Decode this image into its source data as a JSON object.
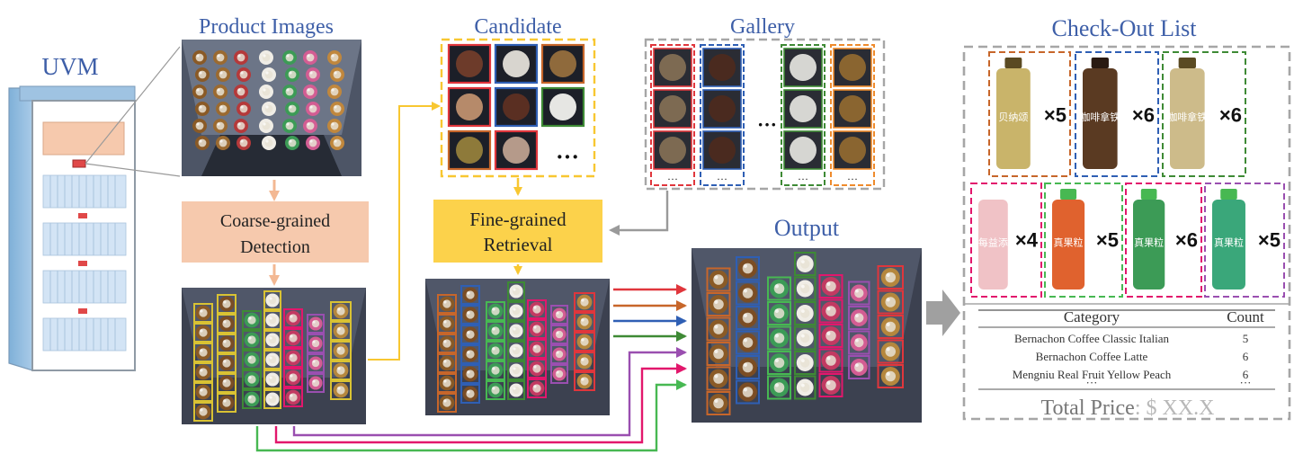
{
  "uvm": {
    "label": "UVM"
  },
  "product_images": {
    "label": "Product Images"
  },
  "coarse_detection": {
    "line1": "Coarse-grained",
    "line2": "Detection"
  },
  "candidate": {
    "label": "Candidate",
    "ellipsis": "···"
  },
  "gallery": {
    "label": "Gallery",
    "ellipsis": "···",
    "column_ellipsis": "···"
  },
  "fine_retrieval": {
    "line1": "Fine-grained",
    "line2": "Retrieval"
  },
  "output": {
    "label": "Output"
  },
  "checkout": {
    "label": "Check-Out List",
    "products": [
      {
        "count": "×5",
        "caption": "贝纳颂"
      },
      {
        "count": "×6",
        "caption": "咖啡拿铁"
      },
      {
        "count": "×6",
        "caption": "咖啡拿铁"
      },
      {
        "count": "×4",
        "caption": "每益添"
      },
      {
        "count": "×5",
        "caption": "真果粒"
      },
      {
        "count": "×6",
        "caption": "真果粒"
      },
      {
        "count": "×5",
        "caption": "真果粒"
      }
    ],
    "table": {
      "header_category": "Category",
      "header_count": "Count",
      "rows": [
        {
          "category": "Bernachon Coffee Classic Italian",
          "count": "5"
        },
        {
          "category": "Bernachon Coffee Latte",
          "count": "6"
        },
        {
          "category": "Mengniu Real Fruit Yellow Peach",
          "count": "6"
        }
      ],
      "ellipsis_category": "···",
      "ellipsis_count": "···"
    },
    "total_label": "Total Price",
    "total_value": ": $ XX.X"
  },
  "colors": {
    "title_blue": "#3e5fa8",
    "coarse_box": "#f6c9ad",
    "fine_box": "#fcd24b",
    "yellow_arrow": "#f8c731",
    "gray_arrow": "#9a9a9a",
    "red": "#e0363c",
    "brown": "#c7662a",
    "blue": "#2f5fb4",
    "green": "#3e8a35",
    "purple": "#9a4fb0",
    "magenta": "#e2176c",
    "lightgreen": "#47b852",
    "orange": "#ef8b2c",
    "pink": "#e46a8a",
    "dashed_gray": "#a6a6a6",
    "dashed_yellow": "#f8c731"
  }
}
